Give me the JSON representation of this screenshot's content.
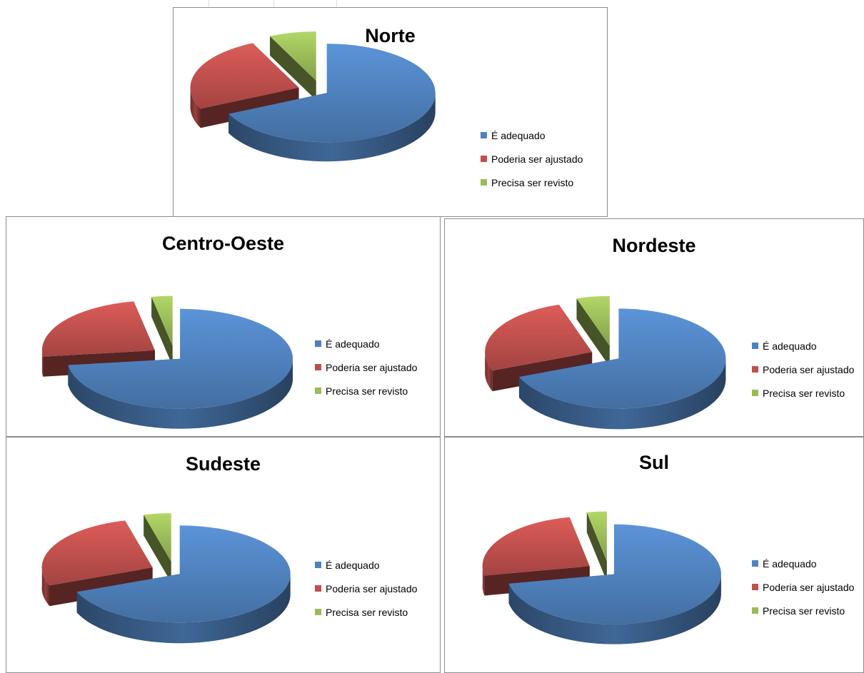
{
  "colors": {
    "adequado": "#4f81bd",
    "ajustado": "#c0504d",
    "revisto": "#9bbb59"
  },
  "chart_data": [
    {
      "type": "pie",
      "title": "Norte",
      "categories": [
        "É adequado",
        "Poderia ser ajustado",
        "Precisa ser revisto"
      ],
      "values": [
        68,
        25,
        7
      ],
      "style": "3d-exploded"
    },
    {
      "type": "pie",
      "title": "Centro-Oeste",
      "categories": [
        "É adequado",
        "Poderia ser ajustado",
        "Precisa ser revisto"
      ],
      "values": [
        73,
        24,
        3
      ],
      "style": "3d-exploded"
    },
    {
      "type": "pie",
      "title": "Nordeste",
      "categories": [
        "É adequado",
        "Poderia ser ajustado",
        "Precisa ser revisto"
      ],
      "values": [
        69,
        26,
        5
      ],
      "style": "3d-exploded"
    },
    {
      "type": "pie",
      "title": "Sudeste",
      "categories": [
        "É adequado",
        "Poderia ser ajustado",
        "Precisa ser revisto"
      ],
      "values": [
        69,
        27,
        4
      ],
      "style": "3d-exploded"
    },
    {
      "type": "pie",
      "title": "Sul",
      "categories": [
        "É adequado",
        "Poderia ser ajustado",
        "Precisa ser revisto"
      ],
      "values": [
        72,
        25,
        3
      ],
      "style": "3d-exploded"
    }
  ]
}
